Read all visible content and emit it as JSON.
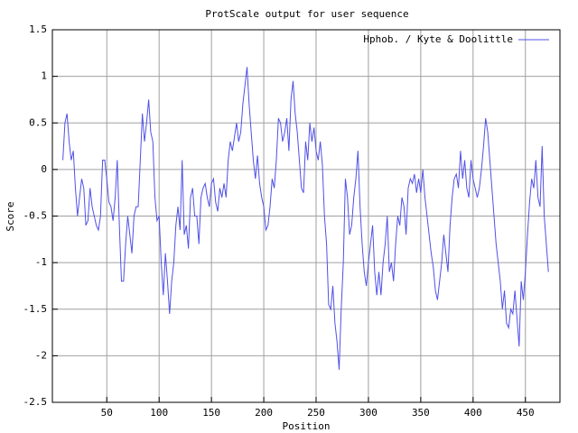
{
  "chart_data": {
    "type": "line",
    "title": "ProtScale output for user sequence",
    "xlabel": "Position",
    "ylabel": "Score",
    "xlim": [
      -2,
      483
    ],
    "ylim": [
      -2.5,
      1.5
    ],
    "xticks": [
      50,
      100,
      150,
      200,
      250,
      300,
      350,
      400,
      450
    ],
    "yticks": [
      1.5,
      1,
      0.5,
      0,
      -0.5,
      -1,
      -1.5,
      -2,
      -2.5
    ],
    "grid": true,
    "legend": "top-right",
    "x": [
      8,
      10,
      12,
      14,
      16,
      18,
      20,
      22,
      24,
      26,
      28,
      30,
      32,
      34,
      36,
      38,
      40,
      42,
      44,
      46,
      48,
      50,
      52,
      54,
      56,
      58,
      60,
      62,
      64,
      66,
      68,
      70,
      72,
      74,
      76,
      78,
      80,
      82,
      84,
      86,
      88,
      90,
      92,
      94,
      96,
      98,
      100,
      102,
      104,
      106,
      108,
      110,
      112,
      114,
      116,
      118,
      120,
      122,
      124,
      126,
      128,
      130,
      132,
      134,
      136,
      138,
      140,
      142,
      144,
      146,
      148,
      150,
      152,
      154,
      156,
      158,
      160,
      162,
      164,
      166,
      168,
      170,
      172,
      174,
      176,
      178,
      180,
      182,
      184,
      186,
      188,
      190,
      192,
      194,
      196,
      198,
      200,
      202,
      204,
      206,
      208,
      210,
      212,
      214,
      216,
      218,
      220,
      222,
      224,
      226,
      228,
      230,
      232,
      234,
      236,
      238,
      240,
      242,
      244,
      246,
      248,
      250,
      252,
      254,
      256,
      258,
      260,
      262,
      264,
      266,
      268,
      270,
      272,
      274,
      276,
      278,
      280,
      282,
      284,
      286,
      288,
      290,
      292,
      294,
      296,
      298,
      300,
      302,
      304,
      306,
      308,
      310,
      312,
      314,
      316,
      318,
      320,
      322,
      324,
      326,
      328,
      330,
      332,
      334,
      336,
      338,
      340,
      342,
      344,
      346,
      348,
      350,
      352,
      354,
      356,
      358,
      360,
      362,
      364,
      366,
      368,
      370,
      372,
      374,
      376,
      378,
      380,
      382,
      384,
      386,
      388,
      390,
      392,
      394,
      396,
      398,
      400,
      402,
      404,
      406,
      408,
      410,
      412,
      414,
      416,
      418,
      420,
      422,
      424,
      426,
      428,
      430,
      432,
      434,
      436,
      438,
      440,
      442,
      444,
      446,
      448,
      450,
      452,
      454,
      456,
      458,
      460,
      462,
      464,
      466,
      468,
      470,
      472
    ],
    "series": [
      {
        "name": "Hphob. / Kyte & Doolittle",
        "color": "#5050e8",
        "values": [
          0.1,
          0.5,
          0.6,
          0.3,
          0.1,
          0.2,
          -0.2,
          -0.5,
          -0.3,
          -0.1,
          -0.2,
          -0.6,
          -0.55,
          -0.2,
          -0.4,
          -0.5,
          -0.6,
          -0.65,
          -0.5,
          0.1,
          0.1,
          -0.1,
          -0.35,
          -0.4,
          -0.55,
          -0.3,
          0.1,
          -0.6,
          -1.2,
          -1.2,
          -0.8,
          -0.5,
          -0.7,
          -0.9,
          -0.5,
          -0.4,
          -0.4,
          0.1,
          0.6,
          0.3,
          0.5,
          0.75,
          0.4,
          0.3,
          -0.3,
          -0.55,
          -0.5,
          -1.0,
          -1.35,
          -0.9,
          -1.2,
          -1.55,
          -1.2,
          -1.0,
          -0.6,
          -0.4,
          -0.65,
          0.1,
          -0.7,
          -0.6,
          -0.85,
          -0.3,
          -0.2,
          -0.5,
          -0.5,
          -0.8,
          -0.3,
          -0.2,
          -0.15,
          -0.3,
          -0.4,
          -0.15,
          -0.1,
          -0.35,
          -0.45,
          -0.2,
          -0.3,
          -0.15,
          -0.3,
          0.1,
          0.3,
          0.2,
          0.35,
          0.5,
          0.3,
          0.4,
          0.7,
          0.9,
          1.1,
          0.7,
          0.4,
          0.1,
          -0.1,
          0.15,
          -0.15,
          -0.3,
          -0.4,
          -0.65,
          -0.6,
          -0.4,
          -0.1,
          -0.2,
          0.1,
          0.55,
          0.5,
          0.3,
          0.4,
          0.55,
          0.2,
          0.75,
          0.95,
          0.6,
          0.4,
          0.1,
          -0.2,
          -0.25,
          0.3,
          0.1,
          0.5,
          0.3,
          0.45,
          0.2,
          0.1,
          0.3,
          0.05,
          -0.5,
          -0.8,
          -1.45,
          -1.5,
          -1.25,
          -1.65,
          -1.85,
          -2.15,
          -1.5,
          -1.0,
          -0.1,
          -0.3,
          -0.7,
          -0.6,
          -0.3,
          -0.1,
          0.2,
          -0.4,
          -0.8,
          -1.1,
          -1.25,
          -1.0,
          -0.8,
          -0.6,
          -1.1,
          -1.35,
          -1.1,
          -1.35,
          -1.0,
          -0.8,
          -0.5,
          -1.1,
          -1.0,
          -1.2,
          -0.8,
          -0.5,
          -0.6,
          -0.3,
          -0.4,
          -0.7,
          -0.2,
          -0.1,
          -0.15,
          -0.05,
          -0.25,
          -0.1,
          -0.25,
          0.0,
          -0.3,
          -0.5,
          -0.7,
          -0.9,
          -1.05,
          -1.3,
          -1.4,
          -1.2,
          -1.0,
          -0.7,
          -0.9,
          -1.1,
          -0.6,
          -0.3,
          -0.1,
          -0.05,
          -0.2,
          0.2,
          -0.1,
          0.1,
          -0.2,
          -0.3,
          0.1,
          -0.1,
          -0.2,
          -0.3,
          -0.2,
          0.0,
          0.25,
          0.55,
          0.4,
          0.1,
          -0.2,
          -0.5,
          -0.8,
          -1.0,
          -1.2,
          -1.5,
          -1.3,
          -1.65,
          -1.7,
          -1.5,
          -1.55,
          -1.3,
          -1.6,
          -1.9,
          -1.2,
          -1.4,
          -1.1,
          -0.7,
          -0.35,
          -0.1,
          -0.2,
          0.1,
          -0.3,
          -0.4,
          0.25,
          -0.5,
          -0.8,
          -1.1
        ]
      }
    ]
  }
}
